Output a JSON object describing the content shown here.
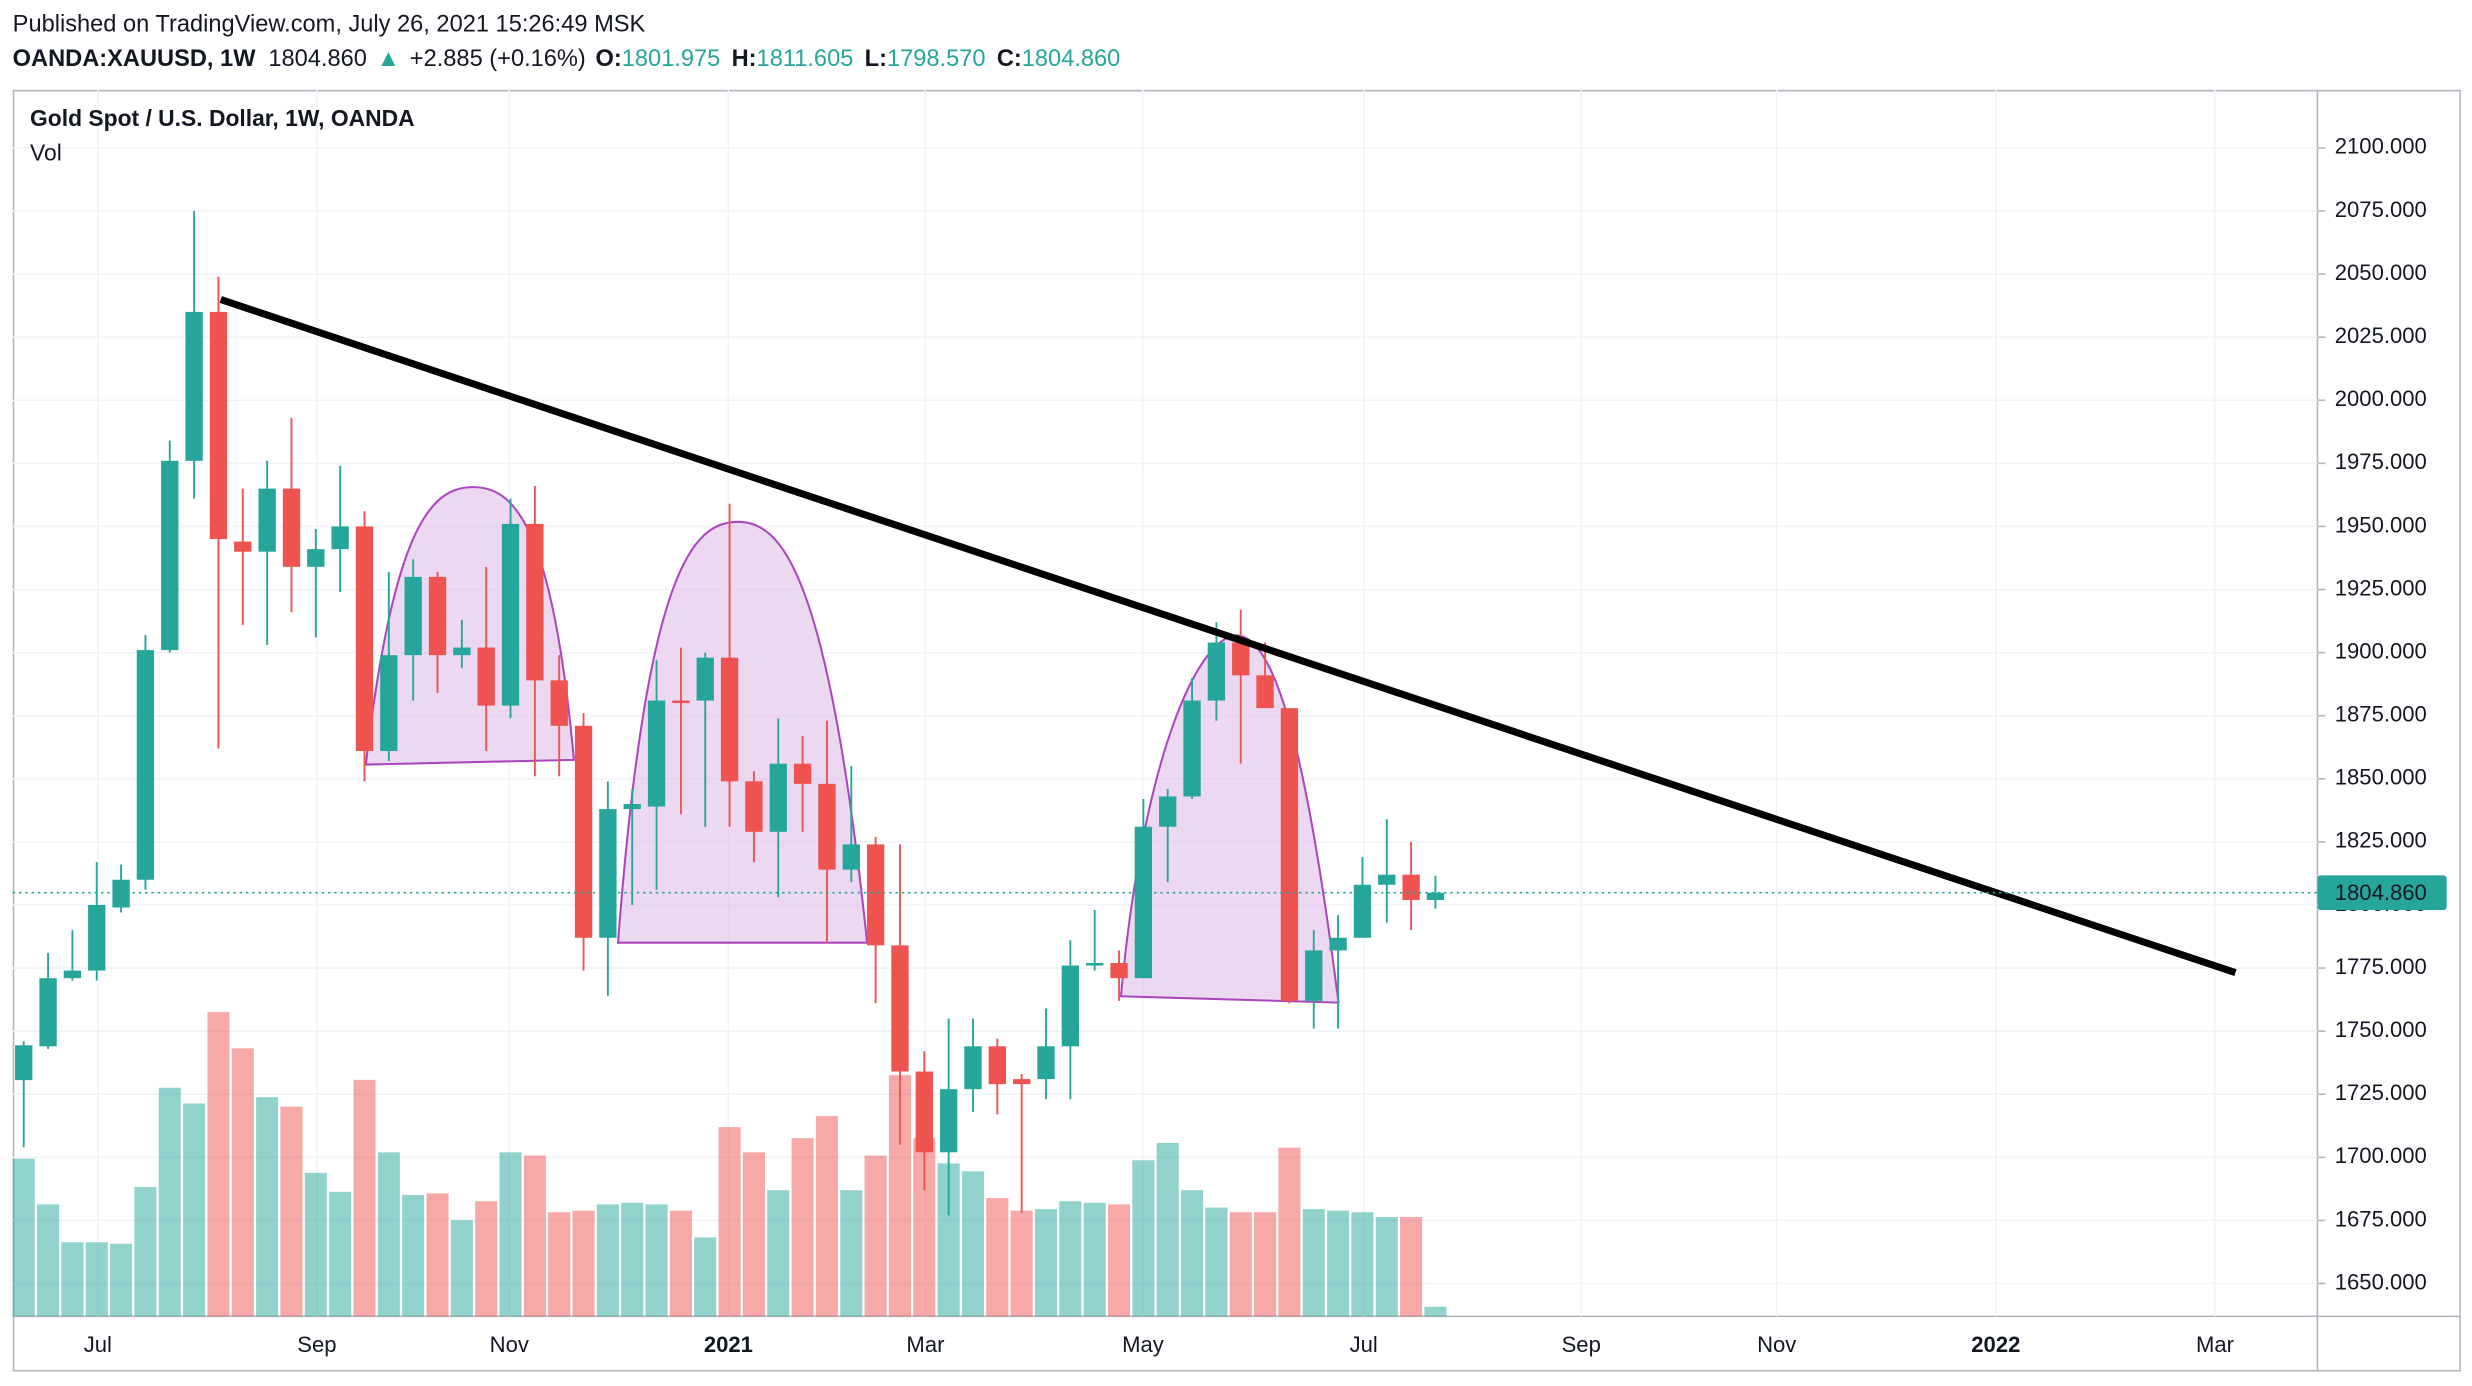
{
  "header": {
    "published": "Published on TradingView.com, July 26, 2021 15:26:49 MSK",
    "symbol": "OANDA:XAUUSD, 1W",
    "last": "1804.860",
    "arrow": "▲",
    "change": "+2.885 (+0.16%)",
    "o_label": "O:",
    "o": "1801.975",
    "h_label": "H:",
    "h": "1811.605",
    "l_label": "L:",
    "l": "1798.570",
    "c_label": "C:",
    "c": "1804.860"
  },
  "chart_data": {
    "type": "candlestick",
    "title": "Gold Spot / U.S. Dollar, 1W, OANDA",
    "volume_label": "Vol",
    "up_color": "#26a69a",
    "down_color": "#ef5350",
    "grid": true,
    "ylim": [
      1637,
      2123
    ],
    "yticks": [
      {
        "value": 1650,
        "label": "1650.000"
      },
      {
        "value": 1675,
        "label": "1675.000"
      },
      {
        "value": 1700,
        "label": "1700.000"
      },
      {
        "value": 1725,
        "label": "1725.000"
      },
      {
        "value": 1750,
        "label": "1750.000"
      },
      {
        "value": 1775,
        "label": "1775.000"
      },
      {
        "value": 1800,
        "label": "1800.000"
      },
      {
        "value": 1825,
        "label": "1825.000"
      },
      {
        "value": 1850,
        "label": "1850.000"
      },
      {
        "value": 1875,
        "label": "1875.000"
      },
      {
        "value": 1900,
        "label": "1900.000"
      },
      {
        "value": 1925,
        "label": "1925.000"
      },
      {
        "value": 1950,
        "label": "1950.000"
      },
      {
        "value": 1975,
        "label": "1975.000"
      },
      {
        "value": 2000,
        "label": "2000.000"
      },
      {
        "value": 2025,
        "label": "2025.000"
      },
      {
        "value": 2050,
        "label": "2050.000"
      },
      {
        "value": 2075,
        "label": "2075.000"
      },
      {
        "value": 2100,
        "label": "2100.000"
      }
    ],
    "xticks": [
      "Jul",
      "Sep",
      "Nov",
      "2021",
      "Mar",
      "May",
      "Jul",
      "Sep",
      "Nov",
      "2022",
      "Mar"
    ],
    "last_price": {
      "value": 1804.86,
      "label": "1804.860"
    },
    "open": [
      1730.6,
      1744,
      1771,
      1774,
      1799,
      1810,
      1901,
      1976,
      2035,
      1944,
      1940,
      1965,
      1934,
      1941,
      1950,
      1861,
      1899,
      1930,
      1899,
      1902,
      1879,
      1951,
      1889,
      1871,
      1787,
      1838,
      1839,
      1881,
      1881,
      1898,
      1849,
      1829,
      1856,
      1848,
      1814,
      1824,
      1784,
      1734,
      1702,
      1727,
      1744,
      1731,
      1731,
      1744,
      1776,
      1777,
      1771,
      1831,
      1843,
      1881,
      1904,
      1891,
      1878,
      1762,
      1782,
      1787,
      1808,
      1812,
      1801.975
    ],
    "high": [
      1746,
      1781,
      1790,
      1817,
      1816,
      1907,
      1984,
      2075,
      2049,
      1965,
      1976,
      1993,
      1949,
      1974,
      1956,
      1932,
      1937,
      1932,
      1913,
      1934,
      1961,
      1966,
      1899,
      1876,
      1849,
      1846,
      1897,
      1902,
      1900,
      1959,
      1853,
      1874,
      1867,
      1873,
      1855,
      1827,
      1824,
      1742,
      1755,
      1755,
      1747,
      1733,
      1759,
      1786,
      1798,
      1782,
      1842,
      1846,
      1890,
      1912,
      1917,
      1904,
      1878,
      1790,
      1796,
      1819,
      1834,
      1825,
      1811.605
    ],
    "low": [
      1704,
      1743,
      1770,
      1770,
      1797,
      1806,
      1900,
      1961,
      1862,
      1911,
      1903,
      1916,
      1906,
      1924,
      1849,
      1857,
      1881,
      1884,
      1894,
      1861,
      1874,
      1851,
      1851,
      1774,
      1764,
      1800,
      1806,
      1836,
      1831,
      1831,
      1817,
      1803,
      1829,
      1785,
      1809,
      1761,
      1705,
      1687,
      1677,
      1718,
      1717,
      1678,
      1723,
      1723,
      1774,
      1762,
      1771,
      1809,
      1842,
      1873,
      1856,
      1878,
      1761,
      1751,
      1751,
      1791,
      1793,
      1790,
      1798.57
    ],
    "close": [
      1744.4,
      1771,
      1774,
      1800,
      1810,
      1901,
      1976,
      2035,
      1945,
      1940,
      1965,
      1934,
      1941,
      1950,
      1861,
      1899,
      1930,
      1899,
      1902,
      1879,
      1951,
      1889,
      1871,
      1787,
      1838,
      1840,
      1881,
      1880,
      1898,
      1849,
      1829,
      1856,
      1848,
      1814,
      1824,
      1784,
      1734,
      1702,
      1727,
      1744,
      1729,
      1729,
      1744,
      1776,
      1777,
      1771,
      1831,
      1843,
      1881,
      1904,
      1891,
      1878,
      1762,
      1782,
      1787,
      1808,
      1812,
      1802,
      1804.86
    ],
    "volume": [
      100,
      71,
      47,
      47,
      46,
      82,
      145,
      135,
      193,
      170,
      139,
      133,
      91,
      79,
      150,
      104,
      77,
      78,
      61,
      73,
      104,
      102,
      66,
      67,
      71,
      72,
      71,
      67,
      50,
      120,
      104,
      80,
      113,
      127,
      80,
      102,
      153,
      113,
      97,
      92,
      75,
      67,
      68,
      73,
      72,
      71,
      99,
      110,
      80,
      69,
      66,
      66,
      107,
      68,
      67,
      66,
      63,
      63,
      6
    ]
  }
}
